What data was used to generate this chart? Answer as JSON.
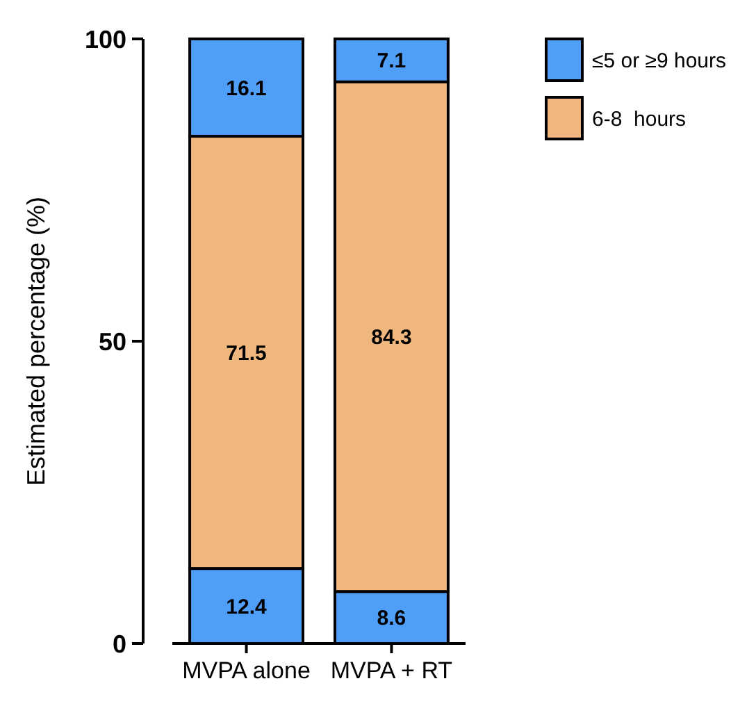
{
  "chart_data": {
    "type": "bar",
    "stacked": true,
    "categories": [
      "MVPA alone",
      "MVPA + RT"
    ],
    "ylabel": "Estimated percentage (%)",
    "ylim": [
      0,
      100
    ],
    "yticks": [
      0,
      50,
      100
    ],
    "data_labels": true,
    "legend": "top right",
    "series": [
      {
        "name": "≤5 or ≥9 hours",
        "color": "#4f9ef8",
        "values": [
          12.4,
          8.6
        ]
      },
      {
        "name": "6-8  hours",
        "color": "#f0b87e",
        "values": [
          71.5,
          84.3
        ]
      },
      {
        "color": "#4f9ef8",
        "values": [
          16.1,
          7.1
        ]
      }
    ]
  }
}
